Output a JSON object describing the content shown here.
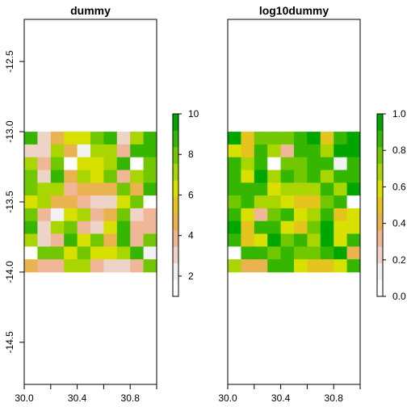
{
  "palette": {
    "levels": [
      "#ffffff",
      "#f2f2f2",
      "#eed4c8",
      "#efb797",
      "#ebb350",
      "#e5c41e",
      "#d8e000",
      "#a9d500",
      "#72c800",
      "#35b600",
      "#00a600"
    ]
  },
  "chart_data": [
    {
      "type": "heatmap",
      "title": "dummy",
      "xlim": [
        30.0,
        31.0
      ],
      "ylim": [
        -14.8,
        -12.2
      ],
      "xticks": [
        30.0,
        30.2,
        30.4,
        30.6,
        30.8,
        31.0
      ],
      "xtick_labels": [
        "30.0",
        "",
        "30.4",
        "",
        "30.8",
        ""
      ],
      "yticks": [
        -12.5,
        -13.0,
        -13.5,
        -14.0,
        -14.5
      ],
      "ytick_labels": [
        "-12.5",
        "-13.0",
        "-13.5",
        "-14.0",
        "-14.5"
      ],
      "grid_extent": {
        "x": [
          30.0,
          31.0
        ],
        "y": [
          -14.0,
          -13.0
        ]
      },
      "zlim": [
        1,
        10
      ],
      "legend_ticks": [
        2,
        4,
        6,
        8,
        10
      ],
      "legend_tick_labels": [
        "2",
        "4",
        "6",
        "8",
        "10"
      ],
      "values": [
        [
          9,
          3,
          5,
          6,
          6,
          8,
          9,
          3,
          7,
          9
        ],
        [
          3,
          3,
          7,
          5,
          2,
          7,
          7,
          4,
          9,
          9
        ],
        [
          7,
          4,
          8,
          1,
          6,
          6,
          7,
          9,
          1,
          8
        ],
        [
          8,
          3,
          9,
          5,
          7,
          6,
          8,
          4,
          7,
          8
        ],
        [
          8,
          7,
          7,
          4,
          5,
          5,
          5,
          8,
          5,
          9
        ],
        [
          6,
          7,
          5,
          5,
          4,
          3,
          3,
          6,
          8,
          1
        ],
        [
          8,
          4,
          2,
          6,
          7,
          4,
          5,
          8,
          3,
          4
        ],
        [
          9,
          3,
          7,
          8,
          4,
          3,
          6,
          9,
          4,
          4
        ],
        [
          7,
          3,
          4,
          9,
          6,
          8,
          5,
          9,
          4,
          8
        ],
        [
          1,
          8,
          8,
          6,
          8,
          6,
          6,
          7,
          9,
          2
        ],
        [
          5,
          4,
          4,
          7,
          7,
          4,
          3,
          3,
          4,
          8
        ]
      ]
    },
    {
      "type": "heatmap",
      "title": "log10dummy",
      "xlim": [
        30.0,
        31.0
      ],
      "ylim": [
        -14.8,
        -12.2
      ],
      "xticks": [
        30.0,
        30.2,
        30.4,
        30.6,
        30.8,
        31.0
      ],
      "xtick_labels": [
        "30.0",
        "",
        "30.4",
        "",
        "30.8",
        ""
      ],
      "yticks": [],
      "ytick_labels": [],
      "grid_extent": {
        "x": [
          30.0,
          31.0
        ],
        "y": [
          -14.0,
          -13.0
        ]
      },
      "zlim": [
        0,
        1
      ],
      "legend_ticks": [
        0.0,
        0.2,
        0.4,
        0.6,
        0.8,
        1.0
      ],
      "legend_tick_labels": [
        "0.0",
        "0.2",
        "0.4",
        "0.6",
        "0.8",
        "1.0"
      ],
      "values": [
        [
          0.95,
          0.45,
          0.75,
          0.8,
          0.8,
          0.9,
          0.95,
          0.5,
          0.85,
          0.95
        ],
        [
          0.6,
          0.5,
          0.85,
          0.7,
          0.3,
          0.85,
          0.85,
          0.65,
          0.95,
          0.95
        ],
        [
          0.85,
          0.65,
          0.9,
          0.0,
          0.8,
          0.75,
          0.85,
          0.9,
          0.1,
          0.9
        ],
        [
          0.9,
          0.6,
          0.95,
          0.7,
          0.85,
          0.8,
          0.9,
          0.65,
          0.85,
          0.9
        ],
        [
          0.9,
          0.85,
          0.85,
          0.6,
          0.7,
          0.7,
          0.7,
          0.9,
          0.7,
          0.95
        ],
        [
          0.8,
          0.85,
          0.7,
          0.7,
          0.6,
          0.5,
          0.5,
          0.8,
          0.9,
          0.0
        ],
        [
          0.9,
          0.6,
          0.3,
          0.8,
          0.85,
          0.6,
          0.7,
          0.9,
          0.5,
          0.6
        ],
        [
          0.95,
          0.5,
          0.85,
          0.9,
          0.6,
          0.5,
          0.8,
          0.95,
          0.6,
          0.6
        ],
        [
          0.85,
          0.5,
          0.6,
          0.95,
          0.8,
          0.9,
          0.7,
          0.95,
          0.6,
          0.9
        ],
        [
          0.0,
          0.9,
          0.9,
          0.8,
          0.9,
          0.8,
          0.8,
          0.85,
          0.95,
          0.35
        ],
        [
          0.7,
          0.4,
          0.4,
          0.85,
          0.85,
          0.6,
          0.5,
          0.5,
          0.6,
          0.9
        ]
      ]
    }
  ]
}
